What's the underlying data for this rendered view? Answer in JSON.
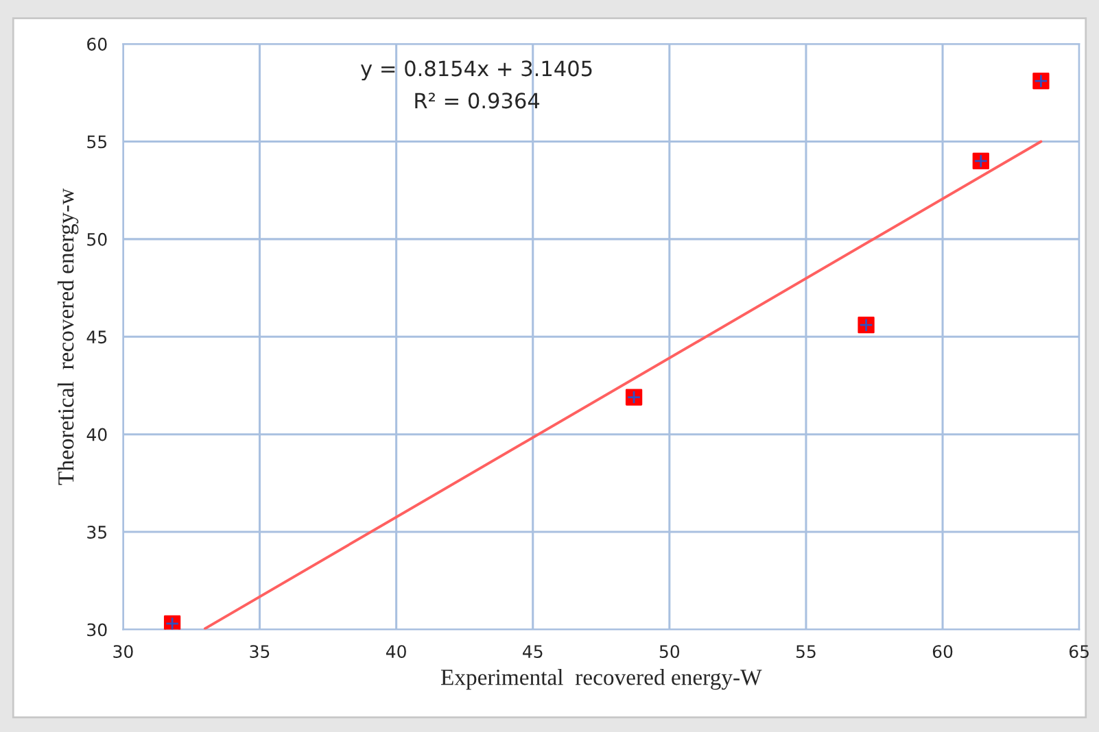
{
  "chart_data": {
    "type": "scatter",
    "xlabel": "Experimental  recovered energy-W",
    "ylabel": "Theoretical  recovered energy-w",
    "series": [
      {
        "color": "#ff0000",
        "marker": "square",
        "x": [
          31.8,
          48.7,
          57.2,
          61.4,
          63.6
        ],
        "values": [
          30.3,
          41.9,
          45.6,
          54.0,
          58.1
        ]
      },
      {
        "type": "line",
        "color": "#ff6060",
        "marker": "none",
        "line_style": "solid",
        "x": [
          33.0,
          63.6
        ],
        "values": [
          30.05,
          55.0
        ]
      }
    ],
    "annotations": [
      "y = 0.8154x + 3.1405",
      "R² = 0.9364"
    ],
    "xlim": [
      30,
      65
    ],
    "xticks": [
      30,
      35,
      40,
      45,
      50,
      55,
      60,
      65
    ],
    "ylim": [
      30,
      60
    ],
    "yticks": [
      30,
      35,
      40,
      45,
      50,
      55,
      60
    ],
    "grid": true,
    "legend": false
  }
}
